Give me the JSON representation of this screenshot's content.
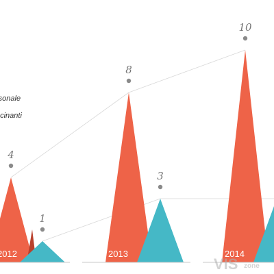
{
  "chart_data": {
    "type": "area",
    "categories": [
      "2012",
      "2013",
      "2014"
    ],
    "series": [
      {
        "name": "rsonale",
        "values": [
          4,
          8,
          10
        ],
        "color": "#ee6348"
      },
      {
        "name": "ocinanti",
        "values": [
          1,
          3,
          3
        ],
        "color": "#45b8c6"
      }
    ],
    "value_labels": {
      "series0": [
        "4",
        "8",
        "10"
      ],
      "series1": [
        "1",
        "3",
        ""
      ]
    },
    "ylim": [
      0,
      10
    ],
    "grid": false,
    "legend_position": "left"
  },
  "legend": {
    "items": [
      "rsonale",
      "ocinanti"
    ]
  },
  "watermark": {
    "big": "VIS",
    "small": "zone"
  },
  "colors": {
    "red": "#ee6348",
    "red_dark": "#b9412d",
    "teal": "#45b8c6",
    "marker": "#8a8a8a",
    "connector": "#d8d8d8"
  }
}
